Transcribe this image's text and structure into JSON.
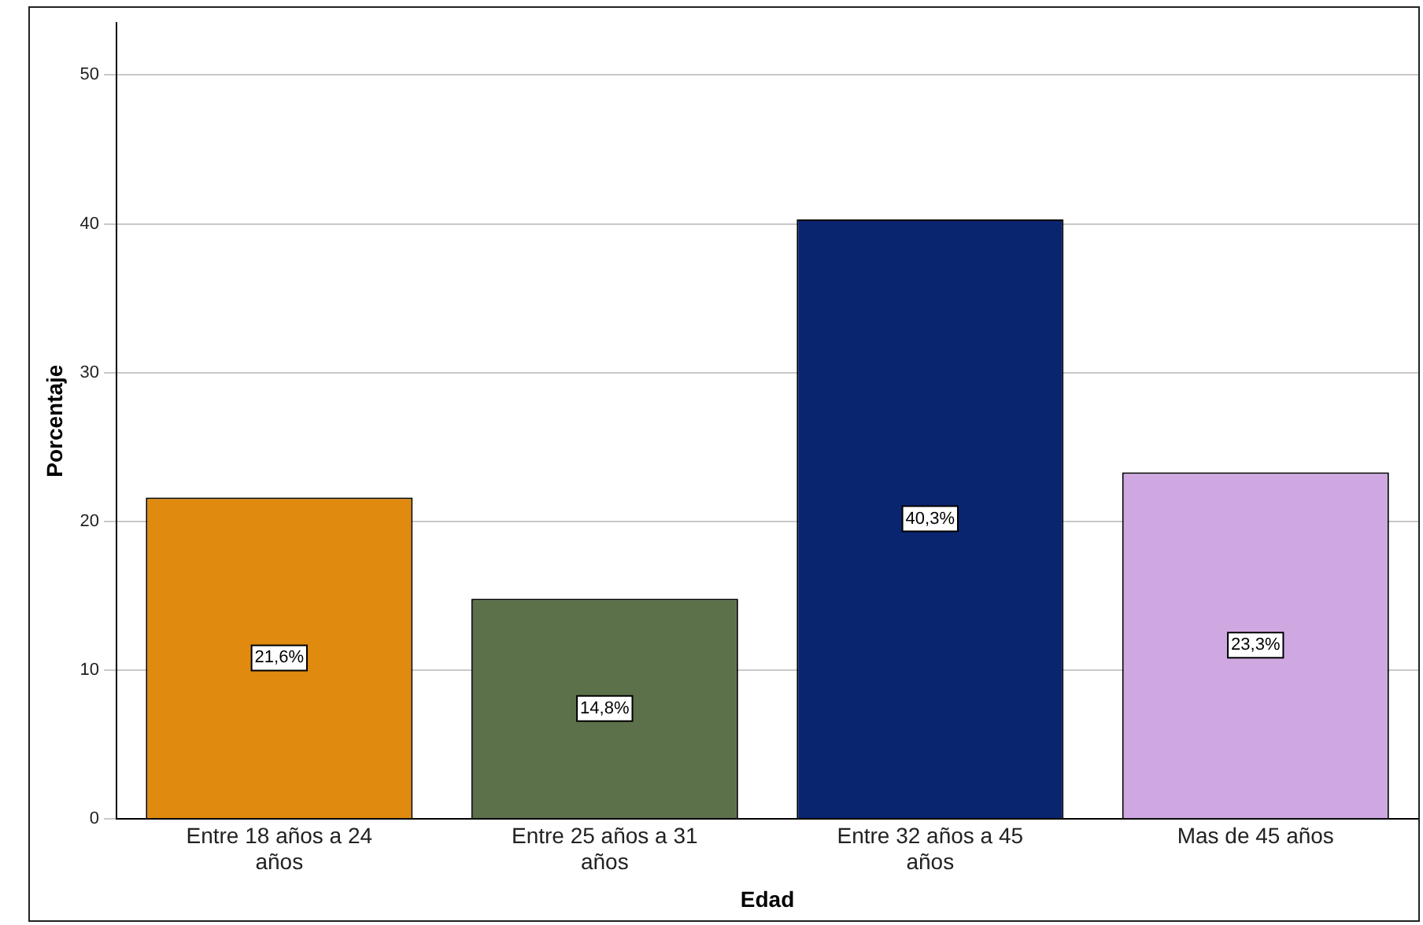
{
  "chart_data": {
    "type": "bar",
    "xlabel": "Edad",
    "ylabel": "Porcentaje",
    "categories": [
      "Entre 18 años a 24 años",
      "Entre 25 años a 31 años",
      "Entre 32 años a 45 años",
      "Mas de 45 años"
    ],
    "values": [
      21.6,
      14.8,
      40.3,
      23.3
    ],
    "colors": [
      "#e08a0f",
      "#5c704a",
      "#0a2570",
      "#cfa8e2"
    ],
    "value_labels": [
      "21,6%",
      "14,8%",
      "40,3%",
      "23,3%"
    ],
    "ylim": [
      0,
      53.5
    ],
    "yticks": [
      0,
      10,
      20,
      30,
      40,
      50
    ],
    "grid": "y",
    "legend": false
  }
}
